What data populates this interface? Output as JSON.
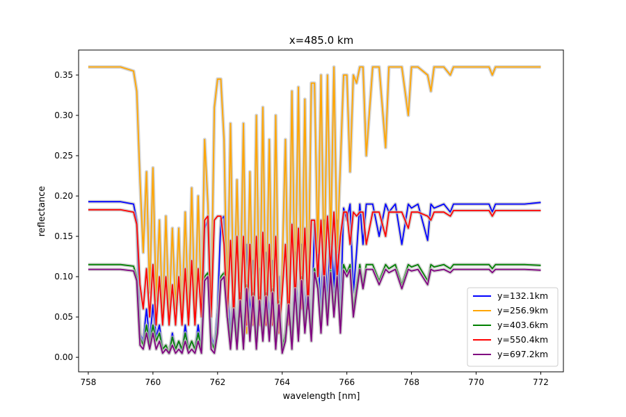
{
  "chart_data": {
    "type": "line",
    "title": "x=485.0 km",
    "xlabel": "wavelength [nm]",
    "ylabel": "reflectance",
    "xlim": [
      757.7,
      772.7
    ],
    "ylim": [
      -0.018,
      0.381
    ],
    "xticks": [
      758,
      760,
      762,
      764,
      766,
      768,
      770,
      772
    ],
    "yticks": [
      0.0,
      0.05,
      0.1,
      0.15,
      0.2,
      0.25,
      0.3,
      0.35
    ],
    "grid": false,
    "legend_position": "lower-right",
    "uncertainty_band_color": "#c0c0c0",
    "series": [
      {
        "name": "y=132.1km",
        "color": "#0000ff",
        "x": [
          758,
          759,
          759.4,
          759.5,
          759.6,
          759.7,
          759.8,
          759.9,
          760.0,
          760.1,
          760.2,
          760.3,
          760.4,
          760.5,
          760.6,
          760.7,
          760.8,
          760.9,
          761.0,
          761.1,
          761.2,
          761.3,
          761.4,
          761.5,
          761.6,
          761.7,
          761.8,
          761.9,
          762.0,
          762.1,
          762.2,
          762.3,
          762.4,
          762.5,
          762.6,
          762.7,
          762.8,
          762.9,
          763.0,
          763.1,
          763.2,
          763.3,
          763.4,
          763.5,
          763.6,
          763.7,
          763.8,
          763.9,
          764.0,
          764.1,
          764.2,
          764.3,
          764.4,
          764.5,
          764.6,
          764.7,
          764.8,
          764.9,
          765.0,
          765.1,
          765.2,
          765.3,
          765.4,
          765.5,
          765.6,
          765.7,
          765.8,
          765.9,
          766.0,
          766.1,
          766.2,
          766.3,
          766.4,
          766.5,
          766.6,
          766.8,
          767.0,
          767.2,
          767.3,
          767.5,
          767.7,
          767.9,
          768.0,
          768.2,
          768.5,
          768.6,
          768.7,
          769.0,
          769.2,
          769.3,
          769.5,
          770.0,
          770.4,
          770.5,
          770.6,
          771.0,
          771.5,
          772.0
        ],
        "y": [
          0.193,
          0.193,
          0.19,
          0.17,
          0.03,
          0.02,
          0.06,
          0.02,
          0.065,
          0.025,
          0.04,
          0.01,
          0.015,
          0.005,
          0.03,
          0.01,
          0.02,
          0.005,
          0.04,
          0.01,
          0.02,
          0.01,
          0.04,
          0.01,
          0.16,
          0.17,
          0.03,
          0.01,
          0.06,
          0.17,
          0.175,
          0.09,
          0.03,
          0.09,
          0.02,
          0.1,
          0.02,
          0.14,
          0.05,
          0.12,
          0.02,
          0.11,
          0.03,
          0.13,
          0.04,
          0.12,
          0.02,
          0.1,
          0.01,
          0.03,
          0.09,
          0.02,
          0.13,
          0.04,
          0.14,
          0.05,
          0.11,
          0.03,
          0.165,
          0.14,
          0.05,
          0.17,
          0.06,
          0.175,
          0.08,
          0.17,
          0.05,
          0.185,
          0.17,
          0.19,
          0.08,
          0.13,
          0.19,
          0.14,
          0.19,
          0.19,
          0.15,
          0.19,
          0.18,
          0.19,
          0.14,
          0.19,
          0.185,
          0.19,
          0.145,
          0.19,
          0.185,
          0.19,
          0.18,
          0.19,
          0.19,
          0.19,
          0.19,
          0.18,
          0.19,
          0.19,
          0.19,
          0.192
        ]
      },
      {
        "name": "y=256.9km",
        "color": "#ffa500",
        "x": [
          758,
          759,
          759.4,
          759.5,
          759.6,
          759.7,
          759.8,
          759.9,
          760.0,
          760.1,
          760.2,
          760.3,
          760.4,
          760.5,
          760.6,
          760.7,
          760.8,
          760.9,
          761.0,
          761.1,
          761.2,
          761.3,
          761.4,
          761.5,
          761.6,
          761.7,
          761.8,
          761.9,
          762.0,
          762.1,
          762.2,
          762.3,
          762.4,
          762.5,
          762.6,
          762.7,
          762.8,
          762.9,
          763.0,
          763.1,
          763.2,
          763.3,
          763.4,
          763.5,
          763.6,
          763.7,
          763.8,
          763.9,
          764.0,
          764.1,
          764.2,
          764.3,
          764.4,
          764.5,
          764.6,
          764.7,
          764.8,
          764.9,
          765.0,
          765.1,
          765.2,
          765.3,
          765.4,
          765.5,
          765.6,
          765.7,
          765.8,
          765.9,
          766.0,
          766.1,
          766.2,
          766.3,
          766.4,
          766.5,
          766.6,
          766.8,
          767.0,
          767.2,
          767.3,
          767.5,
          767.7,
          767.9,
          768.0,
          768.2,
          768.5,
          768.6,
          768.7,
          769.0,
          769.2,
          769.3,
          769.5,
          770.0,
          770.4,
          770.5,
          770.6,
          771.0,
          771.5,
          772.0
        ],
        "y": [
          0.36,
          0.36,
          0.355,
          0.33,
          0.22,
          0.13,
          0.23,
          0.08,
          0.235,
          0.07,
          0.17,
          0.05,
          0.175,
          0.05,
          0.16,
          0.06,
          0.16,
          0.05,
          0.18,
          0.05,
          0.21,
          0.05,
          0.2,
          0.06,
          0.27,
          0.19,
          0.06,
          0.31,
          0.345,
          0.345,
          0.27,
          0.06,
          0.29,
          0.05,
          0.22,
          0.06,
          0.29,
          0.03,
          0.23,
          0.04,
          0.3,
          0.04,
          0.31,
          0.04,
          0.27,
          0.04,
          0.3,
          0.03,
          0.11,
          0.27,
          0.04,
          0.33,
          0.07,
          0.335,
          0.06,
          0.32,
          0.06,
          0.34,
          0.34,
          0.13,
          0.35,
          0.1,
          0.35,
          0.14,
          0.36,
          0.13,
          0.24,
          0.35,
          0.35,
          0.23,
          0.35,
          0.34,
          0.36,
          0.36,
          0.25,
          0.36,
          0.36,
          0.26,
          0.36,
          0.36,
          0.36,
          0.3,
          0.36,
          0.36,
          0.35,
          0.33,
          0.36,
          0.36,
          0.35,
          0.36,
          0.36,
          0.36,
          0.36,
          0.35,
          0.36,
          0.36,
          0.36,
          0.36
        ]
      },
      {
        "name": "y=403.6km",
        "color": "#008000",
        "x": [
          758,
          759,
          759.4,
          759.5,
          759.6,
          759.7,
          759.8,
          759.9,
          760.0,
          760.1,
          760.2,
          760.3,
          760.4,
          760.5,
          760.6,
          760.7,
          760.8,
          760.9,
          761.0,
          761.1,
          761.2,
          761.3,
          761.4,
          761.5,
          761.6,
          761.7,
          761.8,
          761.9,
          762.0,
          762.1,
          762.2,
          762.3,
          762.4,
          762.5,
          762.6,
          762.7,
          762.8,
          762.9,
          763.0,
          763.1,
          763.2,
          763.3,
          763.4,
          763.5,
          763.6,
          763.7,
          763.8,
          763.9,
          764.0,
          764.1,
          764.2,
          764.3,
          764.4,
          764.5,
          764.6,
          764.7,
          764.8,
          764.9,
          765.0,
          765.1,
          765.2,
          765.3,
          765.4,
          765.5,
          765.6,
          765.7,
          765.8,
          765.9,
          766.0,
          766.1,
          766.2,
          766.3,
          766.4,
          766.5,
          766.6,
          766.8,
          767.0,
          767.2,
          767.3,
          767.5,
          767.7,
          767.9,
          768.0,
          768.2,
          768.5,
          768.6,
          768.7,
          769.0,
          769.2,
          769.3,
          769.5,
          770.0,
          770.4,
          770.5,
          770.6,
          771.0,
          771.5,
          772.0
        ],
        "y": [
          0.115,
          0.115,
          0.113,
          0.1,
          0.025,
          0.015,
          0.04,
          0.015,
          0.04,
          0.02,
          0.03,
          0.01,
          0.015,
          0.005,
          0.025,
          0.01,
          0.02,
          0.01,
          0.03,
          0.01,
          0.02,
          0.01,
          0.03,
          0.01,
          0.1,
          0.105,
          0.02,
          0.01,
          0.04,
          0.1,
          0.105,
          0.06,
          0.02,
          0.07,
          0.02,
          0.08,
          0.02,
          0.09,
          0.03,
          0.08,
          0.02,
          0.075,
          0.03,
          0.08,
          0.03,
          0.085,
          0.02,
          0.07,
          0.01,
          0.03,
          0.07,
          0.02,
          0.09,
          0.03,
          0.1,
          0.04,
          0.08,
          0.03,
          0.11,
          0.09,
          0.04,
          0.105,
          0.05,
          0.11,
          0.06,
          0.105,
          0.04,
          0.115,
          0.105,
          0.115,
          0.06,
          0.09,
          0.115,
          0.09,
          0.115,
          0.115,
          0.095,
          0.115,
          0.11,
          0.115,
          0.09,
          0.115,
          0.112,
          0.115,
          0.095,
          0.115,
          0.112,
          0.115,
          0.11,
          0.115,
          0.115,
          0.115,
          0.115,
          0.11,
          0.115,
          0.115,
          0.115,
          0.114
        ]
      },
      {
        "name": "y=550.4km",
        "color": "#ff0000",
        "x": [
          758,
          759,
          759.4,
          759.5,
          759.6,
          759.7,
          759.8,
          759.9,
          760.0,
          760.1,
          760.2,
          760.3,
          760.4,
          760.5,
          760.6,
          760.7,
          760.8,
          760.9,
          761.0,
          761.1,
          761.2,
          761.3,
          761.4,
          761.5,
          761.6,
          761.7,
          761.8,
          761.9,
          762.0,
          762.1,
          762.2,
          762.3,
          762.4,
          762.5,
          762.6,
          762.7,
          762.8,
          762.9,
          763.0,
          763.1,
          763.2,
          763.3,
          763.4,
          763.5,
          763.6,
          763.7,
          763.8,
          763.9,
          764.0,
          764.1,
          764.2,
          764.3,
          764.4,
          764.5,
          764.6,
          764.7,
          764.8,
          764.9,
          765.0,
          765.1,
          765.2,
          765.3,
          765.4,
          765.5,
          765.6,
          765.7,
          765.8,
          765.9,
          766.0,
          766.1,
          766.2,
          766.3,
          766.4,
          766.5,
          766.6,
          766.8,
          767.0,
          767.2,
          767.3,
          767.5,
          767.7,
          767.9,
          768.0,
          768.2,
          768.5,
          768.6,
          768.7,
          769.0,
          769.2,
          769.3,
          769.5,
          770.0,
          770.4,
          770.5,
          770.6,
          771.0,
          771.5,
          772.0
        ],
        "y": [
          0.183,
          0.183,
          0.18,
          0.165,
          0.09,
          0.06,
          0.11,
          0.05,
          0.115,
          0.04,
          0.1,
          0.04,
          0.1,
          0.04,
          0.09,
          0.04,
          0.1,
          0.04,
          0.11,
          0.04,
          0.12,
          0.04,
          0.11,
          0.05,
          0.17,
          0.175,
          0.05,
          0.17,
          0.175,
          0.175,
          0.14,
          0.05,
          0.145,
          0.05,
          0.15,
          0.05,
          0.15,
          0.04,
          0.14,
          0.04,
          0.15,
          0.04,
          0.155,
          0.04,
          0.14,
          0.04,
          0.15,
          0.03,
          0.08,
          0.14,
          0.04,
          0.165,
          0.07,
          0.16,
          0.06,
          0.16,
          0.06,
          0.17,
          0.17,
          0.1,
          0.17,
          0.09,
          0.175,
          0.11,
          0.18,
          0.1,
          0.15,
          0.18,
          0.18,
          0.14,
          0.18,
          0.175,
          0.18,
          0.18,
          0.14,
          0.18,
          0.18,
          0.15,
          0.18,
          0.18,
          0.18,
          0.16,
          0.18,
          0.18,
          0.175,
          0.17,
          0.18,
          0.18,
          0.175,
          0.182,
          0.182,
          0.182,
          0.182,
          0.175,
          0.182,
          0.182,
          0.182,
          0.182
        ]
      },
      {
        "name": "y=697.2km",
        "color": "#800080",
        "x": [
          758,
          759,
          759.4,
          759.5,
          759.6,
          759.7,
          759.8,
          759.9,
          760.0,
          760.1,
          760.2,
          760.3,
          760.4,
          760.5,
          760.6,
          760.7,
          760.8,
          760.9,
          761.0,
          761.1,
          761.2,
          761.3,
          761.4,
          761.5,
          761.6,
          761.7,
          761.8,
          761.9,
          762.0,
          762.1,
          762.2,
          762.3,
          762.4,
          762.5,
          762.6,
          762.7,
          762.8,
          762.9,
          763.0,
          763.1,
          763.2,
          763.3,
          763.4,
          763.5,
          763.6,
          763.7,
          763.8,
          763.9,
          764.0,
          764.1,
          764.2,
          764.3,
          764.4,
          764.5,
          764.6,
          764.7,
          764.8,
          764.9,
          765.0,
          765.1,
          765.2,
          765.3,
          765.4,
          765.5,
          765.6,
          765.7,
          765.8,
          765.9,
          766.0,
          766.1,
          766.2,
          766.3,
          766.4,
          766.5,
          766.6,
          766.8,
          767.0,
          767.2,
          767.3,
          767.5,
          767.7,
          767.9,
          768.0,
          768.2,
          768.5,
          768.6,
          768.7,
          769.0,
          769.2,
          769.3,
          769.5,
          770.0,
          770.4,
          770.5,
          770.6,
          771.0,
          771.5,
          772.0
        ],
        "y": [
          0.109,
          0.109,
          0.107,
          0.095,
          0.015,
          0.01,
          0.03,
          0.01,
          0.03,
          0.01,
          0.02,
          0.005,
          0.01,
          0.005,
          0.015,
          0.005,
          0.01,
          0.005,
          0.02,
          0.005,
          0.01,
          0.005,
          0.02,
          0.005,
          0.095,
          0.1,
          0.01,
          0.005,
          0.03,
          0.095,
          0.1,
          0.05,
          0.01,
          0.06,
          0.01,
          0.07,
          0.01,
          0.085,
          0.02,
          0.075,
          0.01,
          0.07,
          0.02,
          0.075,
          0.02,
          0.08,
          0.01,
          0.065,
          0.005,
          0.02,
          0.065,
          0.01,
          0.085,
          0.02,
          0.095,
          0.03,
          0.075,
          0.02,
          0.105,
          0.085,
          0.03,
          0.1,
          0.04,
          0.105,
          0.05,
          0.1,
          0.03,
          0.108,
          0.1,
          0.109,
          0.05,
          0.08,
          0.109,
          0.085,
          0.109,
          0.109,
          0.09,
          0.109,
          0.105,
          0.109,
          0.085,
          0.109,
          0.107,
          0.109,
          0.09,
          0.109,
          0.107,
          0.109,
          0.105,
          0.109,
          0.109,
          0.109,
          0.109,
          0.105,
          0.109,
          0.109,
          0.109,
          0.108
        ]
      }
    ]
  }
}
